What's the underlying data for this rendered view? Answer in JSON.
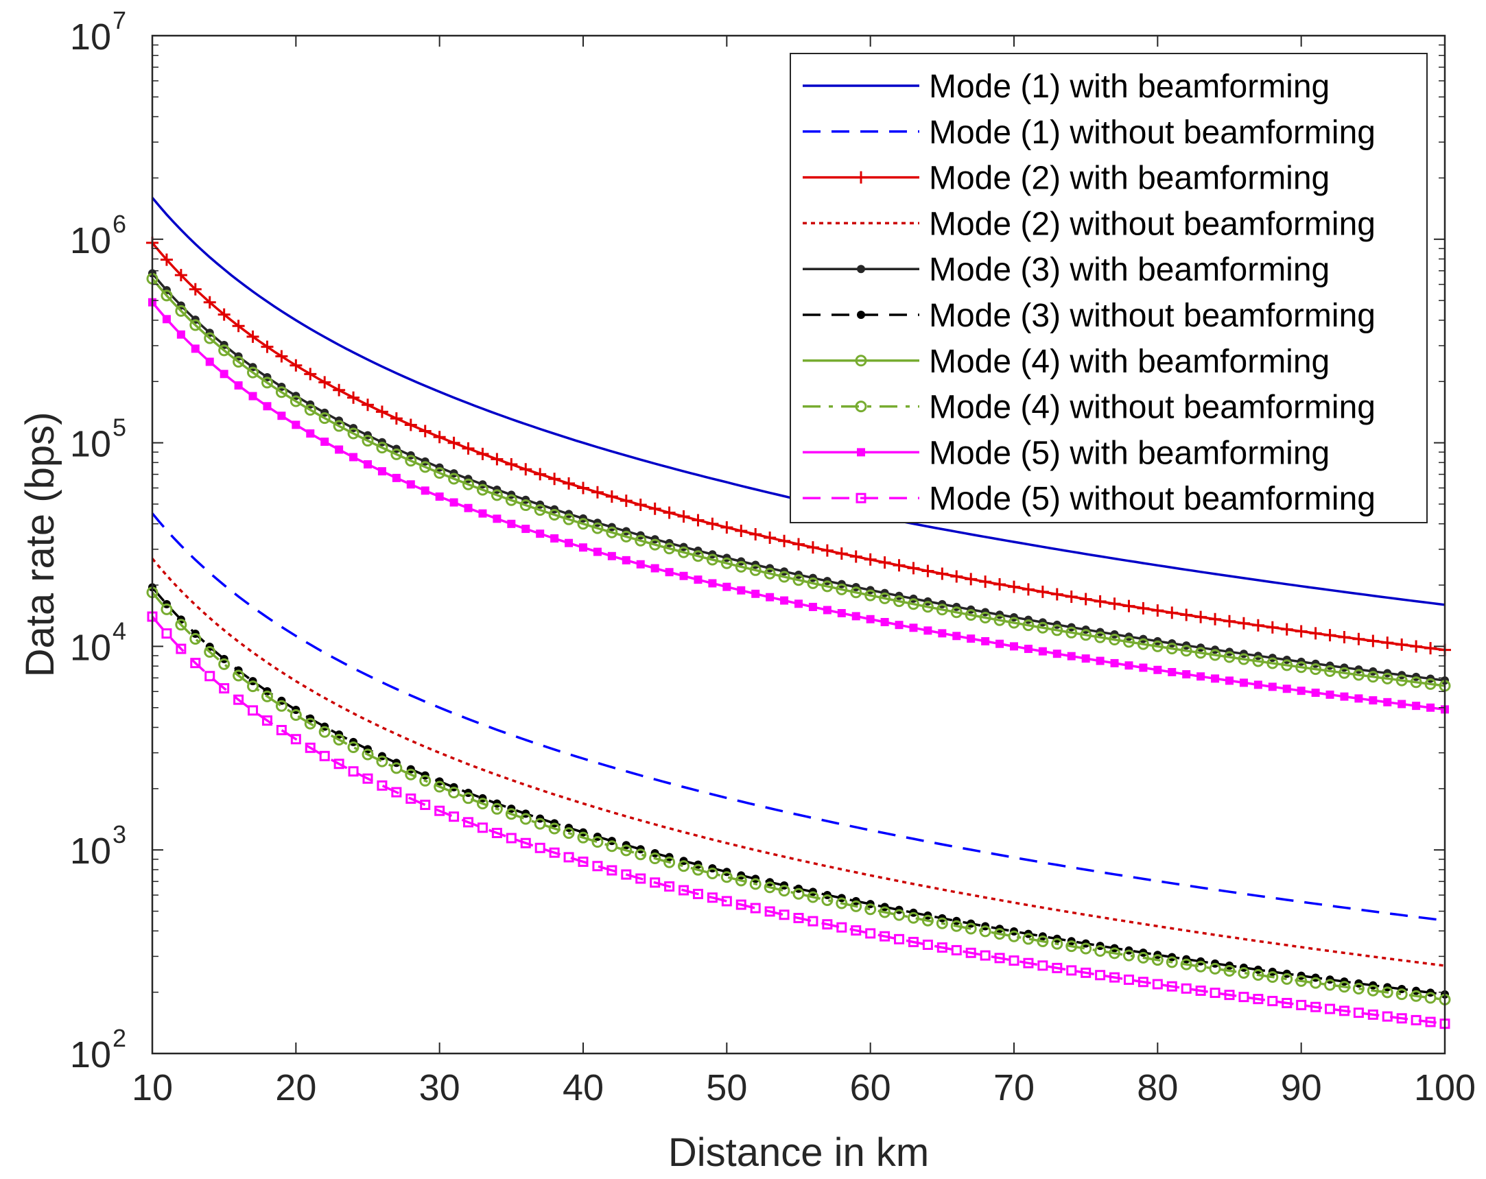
{
  "chart_data": {
    "type": "line",
    "title": "",
    "xlabel": "Distance in km",
    "ylabel": "Data rate (bps)",
    "xlim": [
      10,
      100
    ],
    "ylim": [
      100,
      10000000
    ],
    "yscale": "log",
    "grid": false,
    "legend_position": "top-right",
    "x_ticks": [
      "10",
      "20",
      "30",
      "40",
      "50",
      "60",
      "70",
      "80",
      "90",
      "100"
    ],
    "y_ticks": [
      {
        "base": "10",
        "exp": "2",
        "value": 100
      },
      {
        "base": "10",
        "exp": "3",
        "value": 1000
      },
      {
        "base": "10",
        "exp": "4",
        "value": 10000
      },
      {
        "base": "10",
        "exp": "5",
        "value": 100000
      },
      {
        "base": "10",
        "exp": "6",
        "value": 1000000
      },
      {
        "base": "10",
        "exp": "7",
        "value": 10000000
      }
    ],
    "x": [
      10,
      20,
      30,
      40,
      50,
      60,
      70,
      80,
      90,
      100
    ],
    "series": [
      {
        "name": "Mode (1) with beamforming",
        "color": "#0000c8",
        "dash": "solid",
        "marker": "none",
        "values": [
          1600000,
          400000,
          178000,
          100000,
          64000,
          44000,
          32600,
          25000,
          19750,
          16000
        ]
      },
      {
        "name": "Mode (1) without beamforming",
        "color": "#0000ff",
        "dash": "dashed",
        "marker": "none",
        "values": [
          45000,
          11250,
          5000,
          2810,
          1800,
          1250,
          918,
          703,
          556,
          450
        ]
      },
      {
        "name": "Mode (2) with beamforming",
        "color": "#e00000",
        "dash": "solid",
        "marker": "plus",
        "values": [
          960000,
          240000,
          106700,
          60000,
          38400,
          26700,
          19600,
          15000,
          11850,
          9600
        ]
      },
      {
        "name": "Mode (2) without beamforming",
        "color": "#cc0000",
        "dash": "dotted",
        "marker": "none",
        "values": [
          27000,
          6750,
          3000,
          1690,
          1080,
          750,
          551,
          422,
          333,
          270
        ]
      },
      {
        "name": "Mode (3) with beamforming",
        "color": "#262626",
        "dash": "solid",
        "marker": "dot",
        "values": [
          680000,
          170000,
          75600,
          42500,
          27200,
          18900,
          13900,
          10600,
          8400,
          6800
        ]
      },
      {
        "name": "Mode (3) without beamforming",
        "color": "#000000",
        "dash": "dashed",
        "marker": "dot",
        "values": [
          19500,
          4875,
          2170,
          1220,
          780,
          542,
          398,
          305,
          241,
          195
        ]
      },
      {
        "name": "Mode (4) with beamforming",
        "color": "#77ac30",
        "dash": "solid",
        "marker": "circle",
        "values": [
          640000,
          160000,
          71100,
          40000,
          25600,
          17800,
          13060,
          10000,
          7900,
          6400
        ]
      },
      {
        "name": "Mode (4) without beamforming",
        "color": "#77ac30",
        "dash": "dashdot",
        "marker": "circle",
        "values": [
          18400,
          4600,
          2044,
          1150,
          736,
          511,
          376,
          288,
          227,
          184
        ]
      },
      {
        "name": "Mode (5) with beamforming",
        "color": "#ff00ff",
        "dash": "solid",
        "marker": "square-filled",
        "values": [
          490000,
          122500,
          54400,
          30600,
          19600,
          13600,
          10000,
          7660,
          6050,
          4900
        ]
      },
      {
        "name": "Mode (5) without beamforming",
        "color": "#ff00ff",
        "dash": "dashed",
        "marker": "square-open",
        "values": [
          14000,
          3500,
          1556,
          875,
          560,
          389,
          286,
          219,
          173,
          140
        ]
      }
    ]
  }
}
